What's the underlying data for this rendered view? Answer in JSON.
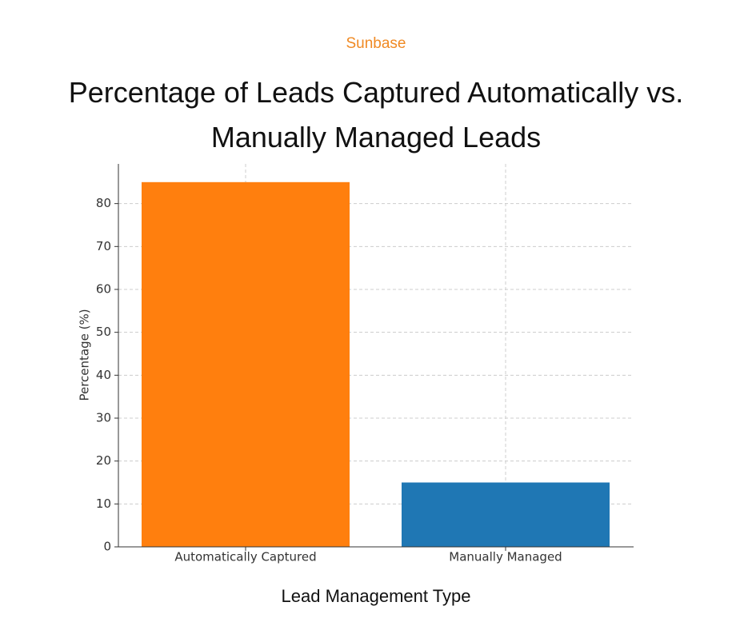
{
  "logo": "Sunbase",
  "chart_data": {
    "type": "bar",
    "title": "Percentage of Leads Captured Automatically vs. Manually Managed Leads",
    "categories": [
      "Automatically Captured",
      "Manually Managed"
    ],
    "values": [
      85,
      15
    ],
    "colors": [
      "#ff7f0e",
      "#1f77b4"
    ],
    "xlabel": "Lead Management Type",
    "ylabel": "Percentage (%)",
    "ylim": [
      0,
      89.25
    ],
    "yticks": [
      0,
      10,
      20,
      30,
      40,
      50,
      60,
      70,
      80
    ],
    "grid": true
  }
}
